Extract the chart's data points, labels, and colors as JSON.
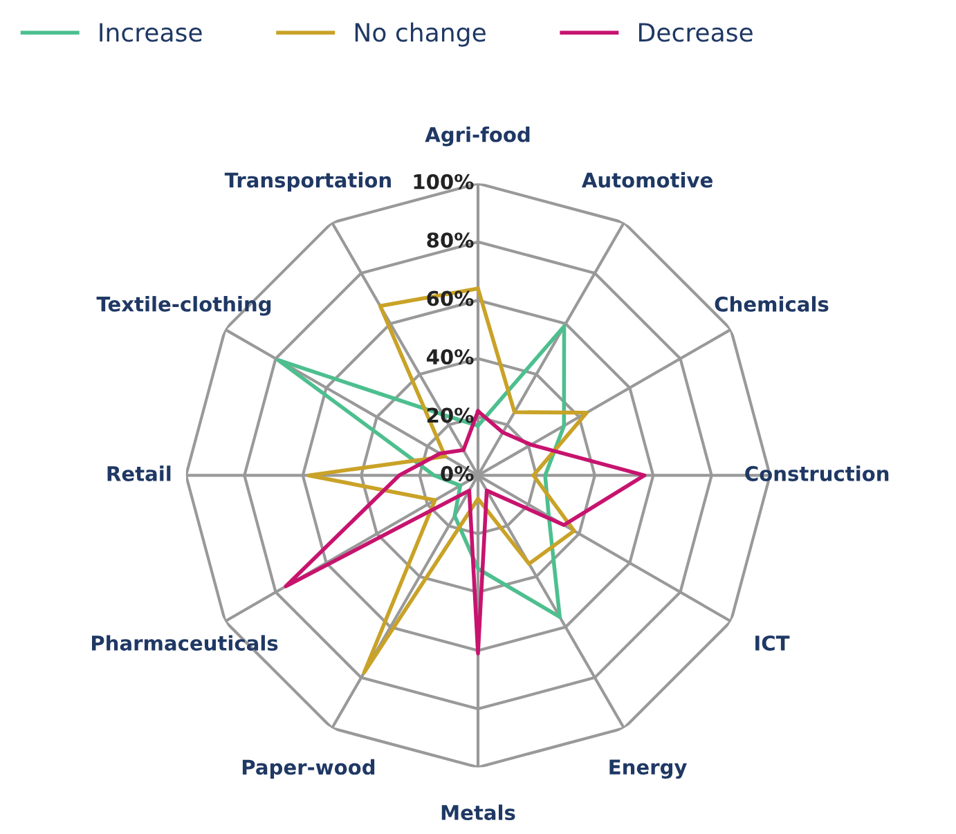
{
  "chart_data": {
    "type": "radar",
    "categories": [
      "Agri-food",
      "Automotive",
      "Chemicals",
      "Construction",
      "ICT",
      "Energy",
      "Metals",
      "Paper-wood",
      "Pharmaceuticals",
      "Retail",
      "Textile-clothing",
      "Transportation"
    ],
    "series": [
      {
        "name": "Increase",
        "color": "#4dbf8f",
        "values": [
          17,
          59,
          34,
          23,
          28,
          56,
          32,
          16,
          7,
          15,
          79,
          24
        ]
      },
      {
        "name": "No change",
        "color": "#c9a227",
        "values": [
          64,
          25,
          43,
          19,
          38,
          35,
          8,
          78,
          17,
          58,
          13,
          67
        ]
      },
      {
        "name": "Decrease",
        "color": "#c7136e",
        "values": [
          22,
          17,
          21,
          57,
          34,
          6,
          61,
          6,
          76,
          27,
          15,
          10
        ]
      }
    ],
    "ylim": [
      0,
      100
    ],
    "yticks": [
      {
        "value": 0,
        "label": "0%"
      },
      {
        "value": 20,
        "label": "20%"
      },
      {
        "value": 40,
        "label": "40%"
      },
      {
        "value": 60,
        "label": "60%"
      },
      {
        "value": 80,
        "label": "80%"
      },
      {
        "value": 100,
        "label": "100%"
      }
    ],
    "grid": true,
    "legend": "top",
    "marker": "none",
    "line_style": "solid"
  }
}
